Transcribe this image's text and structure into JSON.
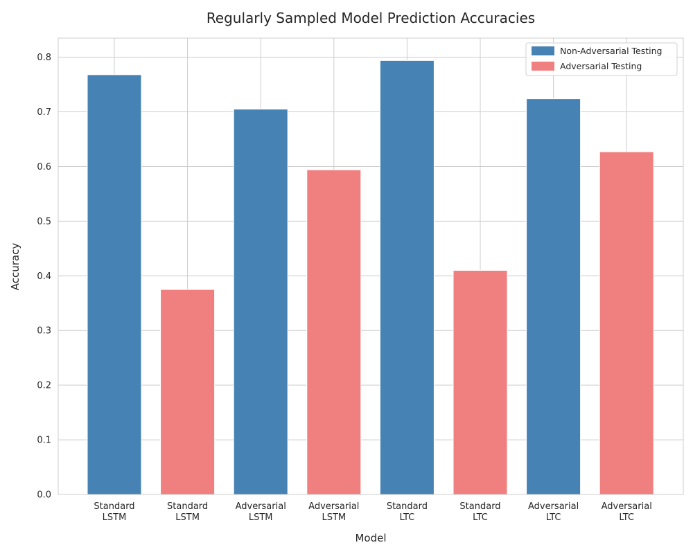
{
  "chart_data": {
    "type": "bar",
    "title": "Regularly Sampled Model Prediction Accuracies",
    "xlabel": "Model",
    "ylabel": "Accuracy",
    "ylim": [
      0,
      0.835
    ],
    "yticks": [
      "0.0",
      "0.1",
      "0.2",
      "0.3",
      "0.4",
      "0.5",
      "0.6",
      "0.7",
      "0.8"
    ],
    "grid": true,
    "legend_position": "top-right",
    "categories": [
      [
        "Standard",
        "LSTM"
      ],
      [
        "Standard",
        "LSTM"
      ],
      [
        "Adversarial",
        "LSTM"
      ],
      [
        "Adversarial",
        "LSTM"
      ],
      [
        "Standard",
        "LTC"
      ],
      [
        "Standard",
        "LTC"
      ],
      [
        "Adversarial",
        "LTC"
      ],
      [
        "Adversarial",
        "LTC"
      ]
    ],
    "values": [
      0.768,
      0.375,
      0.705,
      0.594,
      0.794,
      0.41,
      0.724,
      0.627
    ],
    "bar_series": [
      0,
      1,
      0,
      1,
      0,
      1,
      0,
      1
    ],
    "series": [
      {
        "name": "Non-Adversarial Testing",
        "color": "#4682b4"
      },
      {
        "name": "Adversarial Testing",
        "color": "#f08080"
      }
    ]
  }
}
